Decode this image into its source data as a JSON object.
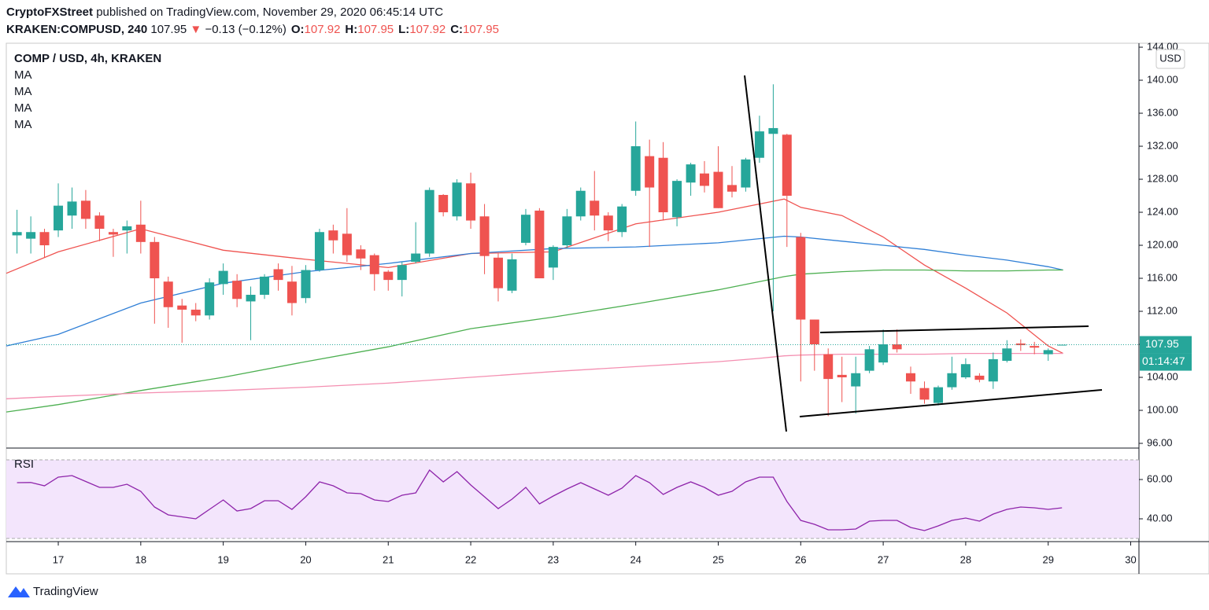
{
  "header": {
    "author": "CryptoFXStreet",
    "published": "published on TradingView.com, November 29, 2020 06:45:14 UTC",
    "symbol": "KRAKEN:COMPUSD, 240",
    "last": "107.95",
    "change": "−0.13 (−0.12%)",
    "ohlc": [
      {
        "label": "O:",
        "value": "107.92"
      },
      {
        "label": "H:",
        "value": "107.95"
      },
      {
        "label": "L:",
        "value": "107.92"
      },
      {
        "label": "C:",
        "value": "107.95"
      }
    ]
  },
  "footer": {
    "brand": "TradingView"
  },
  "chart_data": [
    {
      "type": "candlestick",
      "title": "COMP / USD, 4h, KRAKEN",
      "currency": "USD",
      "up_color": "#26a69a",
      "down_color": "#ef5350",
      "x": [
        16.5,
        16.667,
        16.833,
        17,
        17.167,
        17.333,
        17.5,
        17.667,
        17.833,
        18,
        18.167,
        18.333,
        18.5,
        18.667,
        18.833,
        19,
        19.167,
        19.333,
        19.5,
        19.667,
        19.833,
        20,
        20.167,
        20.333,
        20.5,
        20.667,
        20.833,
        21,
        21.167,
        21.333,
        21.5,
        21.667,
        21.833,
        22,
        22.167,
        22.333,
        22.5,
        22.667,
        22.833,
        23,
        23.167,
        23.333,
        23.5,
        23.667,
        23.833,
        24,
        24.167,
        24.333,
        24.5,
        24.667,
        24.833,
        25,
        25.167,
        25.333,
        25.5,
        25.667,
        25.833,
        26,
        26.167,
        26.333,
        26.5,
        26.667,
        26.833,
        27,
        27.167,
        27.333,
        27.5,
        27.667,
        27.833,
        28,
        28.167,
        28.333,
        28.5,
        28.667,
        28.833,
        29,
        29.167
      ],
      "open": [
        121.2,
        120.8,
        121.6,
        121.8,
        123.6,
        125.4,
        123.6,
        121.6,
        121.8,
        122.5,
        120.4,
        115.6,
        112.7,
        112.2,
        111.5,
        115.3,
        115.7,
        113.2,
        114,
        117.1,
        115.6,
        113.6,
        117,
        121.8,
        121.4,
        119.5,
        118.8,
        116.8,
        115.8,
        118,
        119,
        126.1,
        123.5,
        127.5,
        123.5,
        118.5,
        114.5,
        120.3,
        124.2,
        117.3,
        120,
        123.5,
        125.4,
        123.6,
        121.6,
        126.6,
        130.8,
        130.6,
        123.4,
        127.6,
        128.7,
        128.9,
        127.3,
        127,
        130.6,
        133.5,
        133.4,
        121,
        111,
        106.8,
        104.3,
        102.9,
        104.8,
        105.8,
        108,
        104.5,
        102.7,
        100.9,
        102.8,
        104,
        104.2,
        103.5,
        106,
        108.1,
        107.8,
        106.8,
        107.92
      ],
      "high": [
        124.3,
        123.5,
        122,
        127.5,
        127,
        126.7,
        124,
        122,
        123,
        125.4,
        121,
        116.2,
        113.5,
        113,
        116,
        117.8,
        116.5,
        115,
        116.5,
        117.8,
        117.5,
        117.6,
        122,
        122.5,
        124.5,
        120,
        119,
        117,
        118,
        122.8,
        127,
        126.2,
        128,
        128.8,
        125,
        119,
        119,
        124.4,
        124.5,
        120,
        124.4,
        127,
        129,
        124,
        125,
        135,
        132.8,
        132.5,
        128,
        130,
        130.2,
        132,
        129.6,
        130.6,
        135.7,
        139.5,
        133.5,
        121.5,
        111,
        107.5,
        106.5,
        106.5,
        107.8,
        109.8,
        109.8,
        105.3,
        103.5,
        103,
        106.5,
        106.3,
        104.5,
        107,
        108.5,
        108.6,
        108.3,
        107.5,
        107.95
      ],
      "low": [
        119,
        119,
        118.5,
        121,
        122,
        122,
        120.5,
        118.6,
        119,
        119,
        110.5,
        110,
        108.2,
        110.8,
        111,
        114,
        112.5,
        108.5,
        113.5,
        114.5,
        111.5,
        113,
        116.8,
        119,
        118,
        117,
        114.5,
        114.5,
        113.8,
        117.8,
        118.6,
        123.5,
        123,
        122,
        116.5,
        113.2,
        114.2,
        120,
        116,
        115.8,
        119.6,
        123,
        121.8,
        120.5,
        121,
        126,
        119.8,
        123,
        122.3,
        126,
        126.4,
        124.5,
        125.8,
        126.5,
        130,
        112,
        119.8,
        103.5,
        104.8,
        99.3,
        101,
        99.6,
        104.5,
        105.5,
        107,
        102,
        100.8,
        100.6,
        102.5,
        103.8,
        103.4,
        102.6,
        105.8,
        107.2,
        106.8,
        106,
        107.92
      ],
      "close": [
        121.6,
        121.6,
        120,
        124.8,
        125.3,
        123.2,
        122,
        121.3,
        122.3,
        120.4,
        116,
        112.5,
        112.2,
        111.5,
        115.5,
        116.9,
        113.5,
        114,
        116.2,
        115.8,
        113,
        117,
        121.6,
        120.6,
        118.8,
        118.4,
        116.5,
        115.8,
        117.6,
        119,
        126.7,
        124,
        127.6,
        123,
        118.7,
        114.8,
        118.3,
        123.7,
        116,
        119.8,
        123.5,
        126.6,
        123.6,
        121.8,
        124.7,
        132,
        127,
        124,
        127.8,
        129.8,
        127.2,
        124.5,
        126.5,
        130.4,
        133.8,
        134.2,
        126,
        111,
        108,
        103.8,
        104,
        104.5,
        107.4,
        108,
        107.4,
        103.5,
        101.3,
        102.8,
        104.5,
        105.6,
        103.7,
        106.2,
        107.5,
        107.9,
        107.6,
        107.3,
        107.95
      ],
      "series": [
        {
          "name": "MA",
          "color": "#ef5350",
          "x": [
            16.37,
            17,
            18,
            19,
            20,
            21,
            22,
            23,
            24,
            25,
            25.5,
            25.8,
            26,
            26.5,
            27,
            27.5,
            28,
            28.5,
            29,
            29.18
          ],
          "values": [
            116.6,
            119.2,
            122,
            119.4,
            118.3,
            117.3,
            119,
            119.2,
            122.6,
            124,
            125,
            125.6,
            124.6,
            123.6,
            121,
            117.6,
            114.8,
            111.8,
            107.8,
            106.9
          ]
        },
        {
          "name": "MA",
          "color": "#2f7fd6",
          "x": [
            16.37,
            17,
            18,
            19,
            20,
            21,
            22,
            23,
            24,
            25,
            25.5,
            25.8,
            26,
            26.5,
            27,
            27.5,
            28,
            28.5,
            29,
            29.18
          ],
          "values": [
            107.8,
            109.2,
            113,
            115.4,
            116.8,
            117.8,
            119,
            119.6,
            119.8,
            120.3,
            120.8,
            121.1,
            121,
            120.5,
            120,
            119.5,
            118.8,
            118.2,
            117.4,
            117
          ]
        },
        {
          "name": "MA",
          "color": "#4caf50",
          "x": [
            16.37,
            17,
            18,
            19,
            20,
            21,
            22,
            23,
            24,
            25,
            25.5,
            25.8,
            26,
            26.5,
            27,
            27.5,
            28,
            28.5,
            29,
            29.18
          ],
          "values": [
            99.8,
            100.7,
            102.4,
            104,
            105.9,
            107.7,
            109.9,
            111.3,
            112.9,
            114.6,
            115.6,
            116.2,
            116.5,
            116.8,
            117,
            117,
            116.9,
            116.9,
            117,
            117
          ]
        },
        {
          "name": "MA",
          "color": "#f48fb1",
          "x": [
            16.37,
            17,
            18,
            19,
            20,
            21,
            22,
            23,
            24,
            25,
            25.5,
            25.8,
            26,
            26.5,
            27,
            27.5,
            28,
            28.5,
            29,
            29.18
          ],
          "values": [
            101.4,
            101.7,
            102.1,
            102.4,
            102.8,
            103.3,
            104,
            104.7,
            105.3,
            105.9,
            106.3,
            106.6,
            106.7,
            106.8,
            106.8,
            106.8,
            106.9,
            106.9,
            106.9,
            106.9
          ]
        }
      ],
      "last_price": 107.95,
      "countdown": "01:14:47",
      "xlim": [
        16.37,
        30.1
      ],
      "xticks": [
        17,
        18,
        19,
        20,
        21,
        22,
        23,
        24,
        25,
        26,
        27,
        28,
        29,
        30
      ],
      "ylim": [
        95.43,
        144.48
      ],
      "yticks": [
        {
          "value": 96,
          "label": "96.00"
        },
        {
          "value": 100,
          "label": "100.00"
        },
        {
          "value": 104,
          "label": "104.00"
        },
        {
          "value": 108,
          "label": "108.00"
        },
        {
          "value": 112,
          "label": "112.00"
        },
        {
          "value": 116,
          "label": "116.00"
        },
        {
          "value": 120,
          "label": "120.00"
        },
        {
          "value": 124,
          "label": "124.00"
        },
        {
          "value": 128,
          "label": "128.00"
        },
        {
          "value": 132,
          "label": "132.00"
        },
        {
          "value": 136,
          "label": "136.00"
        },
        {
          "value": 140,
          "label": "140.00"
        },
        {
          "value": 144,
          "label": "144.00"
        }
      ]
    },
    {
      "type": "line",
      "title": "RSI",
      "color": "#8e24aa",
      "band": [
        30,
        70
      ],
      "band_color": "#f3e5fc",
      "x": [
        16.5,
        16.667,
        16.833,
        17,
        17.167,
        17.333,
        17.5,
        17.667,
        17.833,
        18,
        18.167,
        18.333,
        18.5,
        18.667,
        18.833,
        19,
        19.167,
        19.333,
        19.5,
        19.667,
        19.833,
        20,
        20.167,
        20.333,
        20.5,
        20.667,
        20.833,
        21,
        21.167,
        21.333,
        21.5,
        21.667,
        21.833,
        22,
        22.167,
        22.333,
        22.5,
        22.667,
        22.833,
        23,
        23.167,
        23.333,
        23.5,
        23.667,
        23.833,
        24,
        24.167,
        24.333,
        24.5,
        24.667,
        24.833,
        25,
        25.167,
        25.333,
        25.5,
        25.667,
        25.833,
        26,
        26.167,
        26.333,
        26.5,
        26.667,
        26.833,
        27,
        27.167,
        27.333,
        27.5,
        27.667,
        27.833,
        28,
        28.167,
        28.333,
        28.5,
        28.667,
        28.833,
        29,
        29.167
      ],
      "values": [
        58.4,
        58.5,
        56.8,
        61.2,
        62,
        59,
        56,
        56,
        57.6,
        54,
        46,
        42,
        41,
        40,
        44.8,
        49.6,
        44,
        45.2,
        49.2,
        49.2,
        44.8,
        51.2,
        58.8,
        56.8,
        53.2,
        52.8,
        49.6,
        48.8,
        52,
        53.2,
        64.8,
        58.8,
        64,
        57.2,
        51.2,
        45.2,
        50,
        56,
        47.6,
        51.6,
        55.2,
        58.4,
        55.2,
        52,
        55.6,
        62,
        58.4,
        52.4,
        56,
        58.8,
        56,
        52,
        54,
        58.8,
        61.2,
        61.2,
        48.8,
        39.2,
        37.2,
        34.4,
        34.4,
        34.8,
        38.8,
        39.2,
        39.2,
        35.6,
        34,
        36.4,
        39.2,
        40.4,
        38.8,
        42.4,
        44.8,
        46,
        45.6,
        44.8,
        45.6
      ],
      "xlim": [
        16.37,
        30.1
      ],
      "ylim": [
        28.8,
        75.2
      ],
      "yticks": [
        {
          "value": 40,
          "label": "40.00"
        },
        {
          "value": 60,
          "label": "60.00"
        }
      ]
    }
  ]
}
